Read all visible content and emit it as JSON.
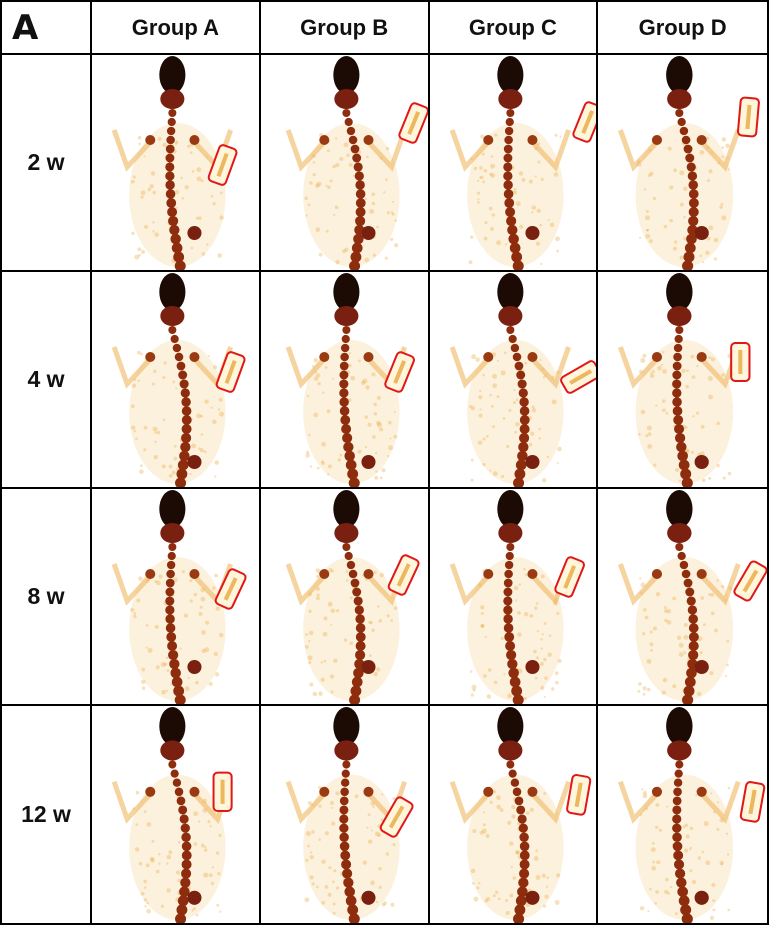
{
  "panel_label": "A",
  "columns": [
    "Group A",
    "Group B",
    "Group C",
    "Group D"
  ],
  "rows": [
    "2 w",
    "4 w",
    "8 w",
    "12 w"
  ]
}
